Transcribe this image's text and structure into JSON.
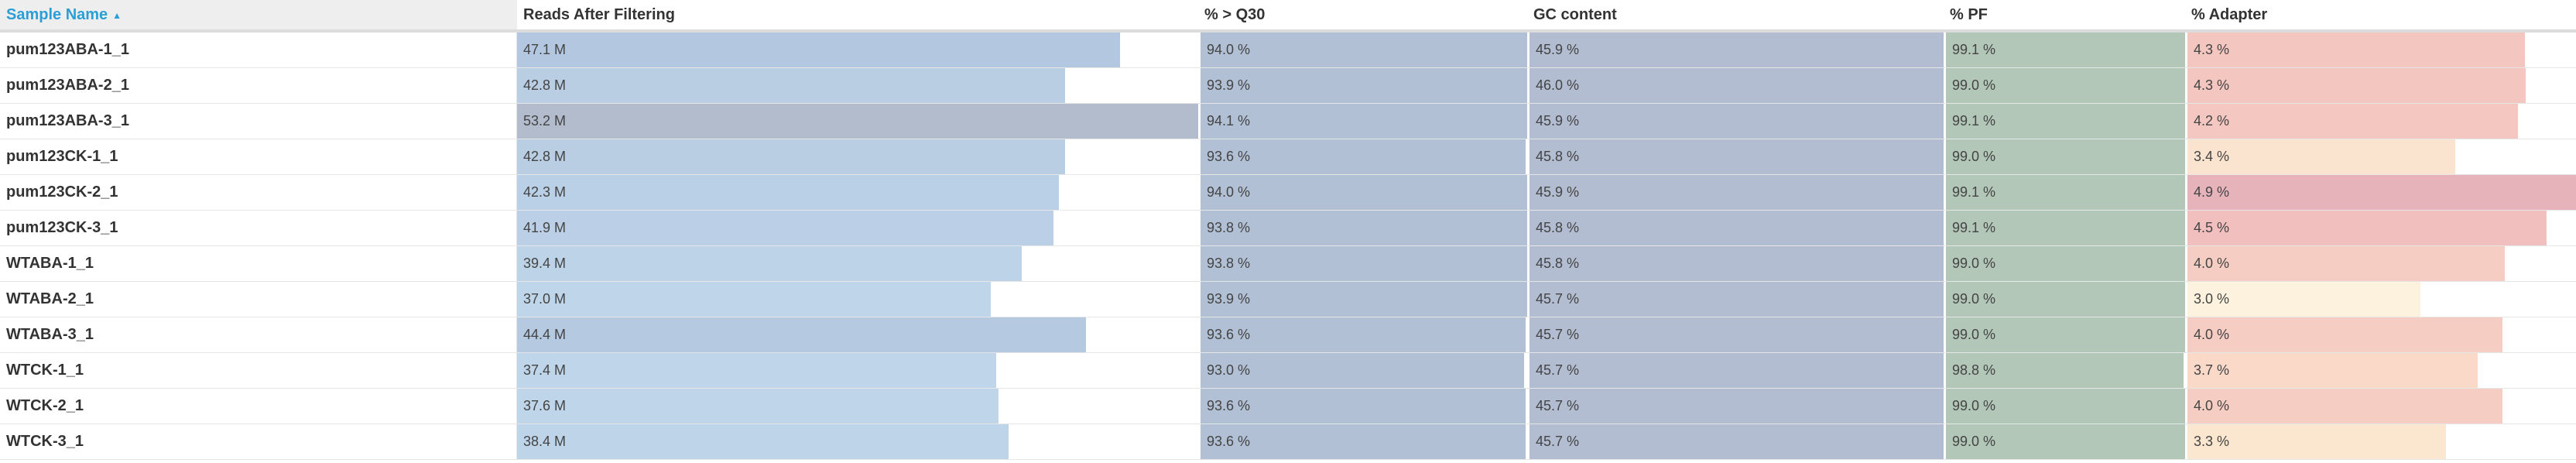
{
  "columns": [
    {
      "key": "name",
      "label": "Sample Name"
    },
    {
      "key": "reads",
      "label": "Reads After Filtering"
    },
    {
      "key": "q30",
      "label": "% > Q30"
    },
    {
      "key": "gc",
      "label": "GC content"
    },
    {
      "key": "pf",
      "label": "% PF"
    },
    {
      "key": "adapter",
      "label": "% Adapter"
    }
  ],
  "sort": {
    "column": "Sample Name",
    "direction": "ascending",
    "icon": "sort-ascending-icon"
  },
  "rows": [
    {
      "name": "pum123ABA-1_1",
      "reads": "47.1 M",
      "q30": "94.0 %",
      "gc": "45.9 %",
      "pf": "99.1 %",
      "adapter": "4.3 %"
    },
    {
      "name": "pum123ABA-2_1",
      "reads": "42.8 M",
      "q30": "93.9 %",
      "gc": "46.0 %",
      "pf": "99.0 %",
      "adapter": "4.3 %"
    },
    {
      "name": "pum123ABA-3_1",
      "reads": "53.2 M",
      "q30": "94.1 %",
      "gc": "45.9 %",
      "pf": "99.1 %",
      "adapter": "4.2 %"
    },
    {
      "name": "pum123CK-1_1",
      "reads": "42.8 M",
      "q30": "93.6 %",
      "gc": "45.8 %",
      "pf": "99.0 %",
      "adapter": "3.4 %"
    },
    {
      "name": "pum123CK-2_1",
      "reads": "42.3 M",
      "q30": "94.0 %",
      "gc": "45.9 %",
      "pf": "99.1 %",
      "adapter": "4.9 %"
    },
    {
      "name": "pum123CK-3_1",
      "reads": "41.9 M",
      "q30": "93.8 %",
      "gc": "45.8 %",
      "pf": "99.1 %",
      "adapter": "4.5 %"
    },
    {
      "name": "WTABA-1_1",
      "reads": "39.4 M",
      "q30": "93.8 %",
      "gc": "45.8 %",
      "pf": "99.0 %",
      "adapter": "4.0 %"
    },
    {
      "name": "WTABA-2_1",
      "reads": "37.0 M",
      "q30": "93.9 %",
      "gc": "45.7 %",
      "pf": "99.0 %",
      "adapter": "3.0 %"
    },
    {
      "name": "WTABA-3_1",
      "reads": "44.4 M",
      "q30": "93.6 %",
      "gc": "45.7 %",
      "pf": "99.0 %",
      "adapter": "4.0 %"
    },
    {
      "name": "WTCK-1_1",
      "reads": "37.4 M",
      "q30": "93.0 %",
      "gc": "45.7 %",
      "pf": "98.8 %",
      "adapter": "3.7 %"
    },
    {
      "name": "WTCK-2_1",
      "reads": "37.6 M",
      "q30": "93.6 %",
      "gc": "45.7 %",
      "pf": "99.0 %",
      "adapter": "4.0 %"
    },
    {
      "name": "WTCK-3_1",
      "reads": "38.4 M",
      "q30": "93.6 %",
      "gc": "45.7 %",
      "pf": "99.0 %",
      "adapter": "3.3 %"
    }
  ],
  "fills": {
    "reads": [
      0.885,
      0.805,
      1.0,
      0.805,
      0.795,
      0.788,
      0.741,
      0.696,
      0.835,
      0.703,
      0.707,
      0.722
    ],
    "q30": [
      1.0,
      1.0,
      1.0,
      0.995,
      1.0,
      1.0,
      1.0,
      1.0,
      0.995,
      0.99,
      0.995,
      0.995
    ],
    "gc": [
      1.0,
      1.0,
      1.0,
      1.0,
      1.0,
      1.0,
      1.0,
      1.0,
      1.0,
      1.0,
      1.0,
      1.0
    ],
    "pf": [
      1.0,
      1.0,
      1.0,
      1.0,
      1.0,
      1.0,
      1.0,
      1.0,
      1.0,
      0.995,
      1.0,
      1.0
    ],
    "adapter": [
      0.868,
      0.87,
      0.85,
      0.69,
      1.0,
      0.924,
      0.816,
      0.6,
      0.81,
      0.747,
      0.81,
      0.665
    ]
  },
  "colors": {
    "reads": [
      "#b3c7e0",
      "#b9cde3",
      "#b2bccd",
      "#b9cde3",
      "#bad0e6",
      "#bbd0e6",
      "#bcd3e8",
      "#bfd6ea",
      "#b5c9e1",
      "#bed5ea",
      "#bed5ea",
      "#bdd4e9"
    ],
    "q30": [
      "#b1c0d4",
      "#b1c0d4",
      "#b1c0d4",
      "#b1c0d4",
      "#b1c0d4",
      "#b1c0d4",
      "#b1c0d4",
      "#b1c0d4",
      "#b1c0d4",
      "#b1c0d4",
      "#b1c0d4",
      "#b1c0d4"
    ],
    "gc": [
      "#b3bdd1",
      "#b3bdd1",
      "#b3bdd1",
      "#b3bdd1",
      "#b3bdd1",
      "#b3bdd1",
      "#b3bdd1",
      "#b3bdd1",
      "#b3bdd1",
      "#b3bdd1",
      "#b3bdd1",
      "#b3bdd1"
    ],
    "pf": [
      "#b2c7b8",
      "#b2c7b8",
      "#b2c7b8",
      "#b2c7b8",
      "#b2c7b8",
      "#b2c7b8",
      "#b2c7b8",
      "#b2c7b8",
      "#b2c7b8",
      "#b2c7b8",
      "#b2c7b8",
      "#b2c7b8"
    ],
    "adapter": [
      "#f4c6c0",
      "#f4c6c0",
      "#f4c7c0",
      "#fbe4cf",
      "#e6b3bb",
      "#f2bfbf",
      "#f6cdc2",
      "#fdf2dd",
      "#f6cdc2",
      "#fad9c8",
      "#f6cdc2",
      "#fbe6cf"
    ]
  },
  "accent": "#2a9fd6"
}
